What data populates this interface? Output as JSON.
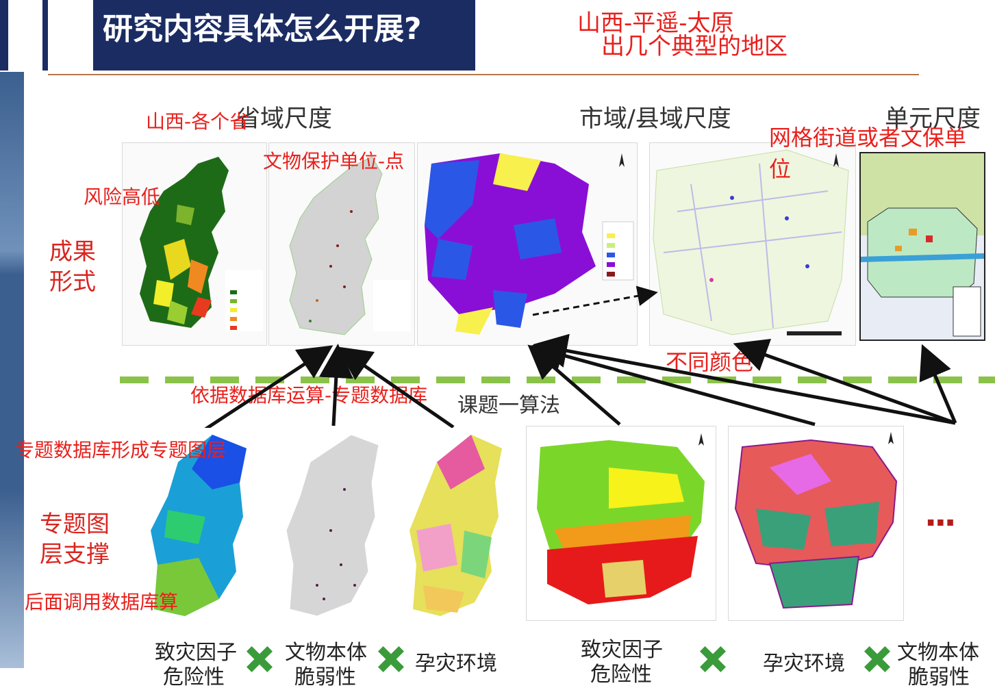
{
  "slide": {
    "title": "研究内容具体怎么开展?",
    "note_top_line1": "山西-平遥-太原",
    "note_top_line2": "出几个典型的地区",
    "headers": {
      "province": "省域尺度",
      "city": "市域/县域尺度",
      "unit": "单元尺度"
    },
    "annotations": {
      "shanxi_each": "山西-各个省",
      "relic_point": "文物保护单位-点",
      "risk": "风险高低",
      "grid": "网格街道或者文保单",
      "grid2": "位",
      "colors": "不同颜色",
      "db_calc": "依据数据库运算-专题数据库",
      "algo": "课题一算法",
      "layers": "专题数据库形成专题图层",
      "call_db": "后面调用数据库算"
    },
    "side_labels": {
      "result_1": "成果",
      "result_2": "形式",
      "support_1": "专题图",
      "support_2": "层支撑"
    },
    "footer": {
      "f1a": "致灾因子",
      "f1b": "危险性",
      "f2a": "文物本体",
      "f2b": "脆弱性",
      "f3": "孕灾环境",
      "f4a": "致灾因子",
      "f4b": "危险性",
      "f5": "孕灾环境",
      "f6a": "文物本体",
      "f6b": "脆弱性"
    },
    "ellipsis": "..."
  }
}
